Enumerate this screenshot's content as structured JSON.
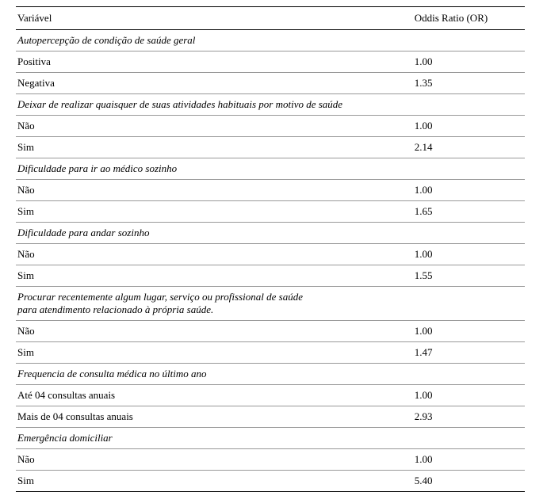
{
  "table": {
    "headers": {
      "variable": "Variável",
      "or": "Oddis Ratio (OR)"
    },
    "sections": [
      {
        "title": "Autopercepção de condição de saúde geral",
        "rows": [
          {
            "label": "Positiva",
            "or": "1.00"
          },
          {
            "label": "Negativa",
            "or": "1.35"
          }
        ]
      },
      {
        "title": "Deixar de realizar quaisquer de suas atividades habituais por motivo de saúde",
        "rows": [
          {
            "label": "Não",
            "or": "1.00"
          },
          {
            "label": "Sim",
            "or": "2.14"
          }
        ]
      },
      {
        "title": "Dificuldade para ir ao médico sozinho",
        "rows": [
          {
            "label": "Não",
            "or": "1.00"
          },
          {
            "label": "Sim",
            "or": "1.65"
          }
        ]
      },
      {
        "title": "Dificuldade para andar sozinho",
        "rows": [
          {
            "label": "Não",
            "or": "1.00"
          },
          {
            "label": "Sim",
            "or": "1.55"
          }
        ]
      },
      {
        "title": "Procurar recentemente algum lugar, serviço ou profissional de saúde\npara atendimento relacionado à própria saúde.",
        "rows": [
          {
            "label": "Não",
            "or": "1.00"
          },
          {
            "label": "Sim",
            "or": "1.47"
          }
        ]
      },
      {
        "title": "Frequencia de consulta médica no último ano",
        "rows": [
          {
            "label": "Até 04 consultas anuais",
            "or": "1.00"
          },
          {
            "label": "Mais de 04 consultas anuais",
            "or": "2.93"
          }
        ]
      },
      {
        "title": "Emergência domiciliar",
        "rows": [
          {
            "label": "Não",
            "or": "1.00"
          },
          {
            "label": "Sim",
            "or": "5.40"
          }
        ]
      }
    ]
  }
}
